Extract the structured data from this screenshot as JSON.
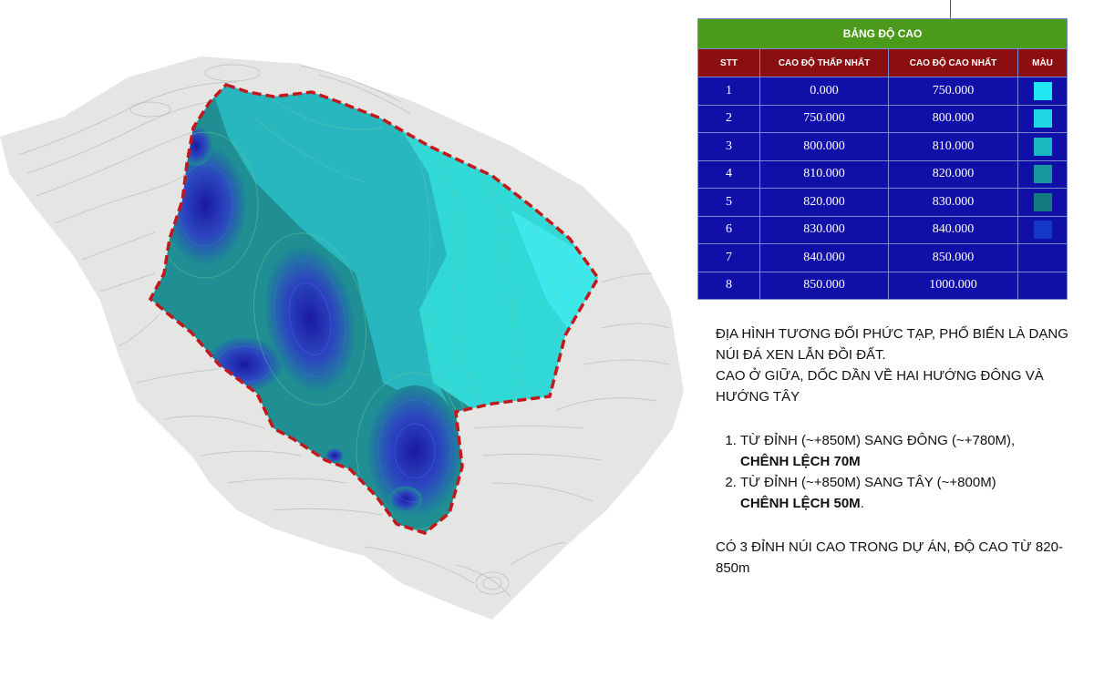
{
  "legend": {
    "title": "BẢNG ĐỘ CAO",
    "columns": {
      "stt": "STT",
      "min": "CAO ĐỘ THẤP NHẤT",
      "max": "CAO ĐỘ CAO NHẤT",
      "color": "MÀU"
    },
    "rows": [
      {
        "stt": "1",
        "min": "0.000",
        "max": "750.000",
        "color": "#22e8f4"
      },
      {
        "stt": "2",
        "min": "750.000",
        "max": "800.000",
        "color": "#1fd8e4"
      },
      {
        "stt": "3",
        "min": "800.000",
        "max": "810.000",
        "color": "#17b8c0"
      },
      {
        "stt": "4",
        "min": "810.000",
        "max": "820.000",
        "color": "#14989c"
      },
      {
        "stt": "5",
        "min": "820.000",
        "max": "830.000",
        "color": "#137a80"
      },
      {
        "stt": "6",
        "min": "830.000",
        "max": "840.000",
        "color": "#1538c8"
      },
      {
        "stt": "7",
        "min": "840.000",
        "max": "850.000",
        "color": "#1010a8"
      },
      {
        "stt": "8",
        "min": "850.000",
        "max": "1000.000",
        "color": "#1010a8"
      }
    ]
  },
  "notes": {
    "p1": "ĐỊA HÌNH TƯƠNG ĐỐI PHỨC TẠP, PHỔ BIẾN LÀ DẠNG NÚI ĐÁ XEN LẪN ĐỒI ĐẤT.",
    "p2": "CAO Ở GIỮA, DỐC DẦN VỀ HAI HƯỚNG ĐÔNG VÀ HƯỚNG TÂY",
    "item1": "TỪ ĐỈNH (~+850M) SANG ĐÔNG (~+780M),",
    "item1_bold": "CHÊNH LỆCH 70M",
    "item2": "TỪ ĐỈNH (~+850M) SANG TÂY (~+800M)",
    "item2_bold": "CHÊNH LỆCH 50M",
    "item2_end": ".",
    "p3": "CÓ 3 ĐỈNH NÚI CAO TRONG DỰ ÁN, ĐỘ CAO TỪ 820-850m"
  },
  "map": {
    "boundary_color": "#c4171b",
    "terrain_color": "#e2e3e0",
    "contour_line_color": "#b8bab6",
    "east_slope_color": "#2ad9d4",
    "mid_color": "#25b2ba",
    "west_color": "#1f8f93",
    "peak_color": "#1c2fae"
  }
}
